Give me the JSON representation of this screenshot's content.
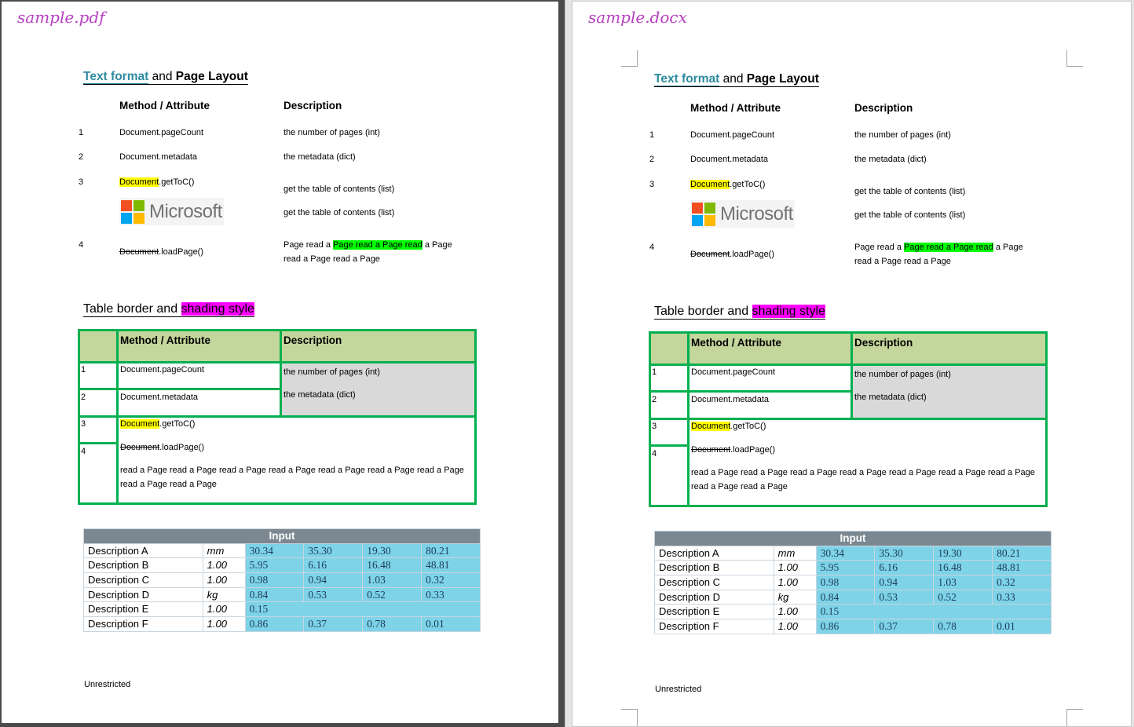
{
  "panels": [
    {
      "filename": "sample.pdf"
    },
    {
      "filename": "sample.docx"
    }
  ],
  "content": {
    "heading1": {
      "part1": "Text format",
      "part2": " and ",
      "part3": "Page Layout"
    },
    "table1": {
      "headers": [
        "Method / Attribute",
        "Description"
      ],
      "rows": [
        {
          "num": "1",
          "method": "Document.pageCount",
          "desc": "the number of pages (int)"
        },
        {
          "num": "2",
          "method": "Document.metadata",
          "desc": "the metadata (dict)"
        },
        {
          "num": "3",
          "method_hl": "Document",
          "method_rest": ".getToC()",
          "desc": "get the table of contents (list)",
          "desc2": "get the table of contents (list)"
        },
        {
          "num": "4",
          "method_strike": "Document",
          "method_rest": ".loadPage()",
          "desc_a": "Page read a ",
          "desc_hl": "Page read a Page read",
          "desc_b": " a Page",
          "desc_line2": "read a Page read a Page"
        }
      ],
      "logo_text": "Microsoft"
    },
    "heading2": {
      "part1": "Table border and ",
      "part2": "shading style"
    },
    "table2": {
      "headers": [
        "Method / Attribute",
        "Description"
      ],
      "nums": [
        "1",
        "2",
        "3",
        "4"
      ],
      "method1": "Document.pageCount",
      "method2": "Document.metadata",
      "desc1": "the number of pages (int)",
      "desc2": "the metadata (dict)",
      "method3_hl": "Document",
      "method3_rest": ".getToC()",
      "method4_strike": "Document",
      "method4_rest": ".loadPage()",
      "para_line1": "read a Page read a Page read a Page read a Page read a Page read a Page read a Page",
      "para_line2": "read a Page read a Page"
    },
    "table3": {
      "header": "Input",
      "rows": [
        {
          "label": "Description A",
          "unit": "mm",
          "values": [
            "30.34",
            "35.30",
            "19.30",
            "80.21"
          ]
        },
        {
          "label": "Description B",
          "unit": "1.00",
          "values": [
            "5.95",
            "6.16",
            "16.48",
            "48.81"
          ]
        },
        {
          "label": "Description C",
          "unit": "1.00",
          "values": [
            "0.98",
            "0.94",
            "1.03",
            "0.32"
          ]
        },
        {
          "label": "Description D",
          "unit": "kg",
          "values": [
            "0.84",
            "0.53",
            "0.52",
            "0.33"
          ]
        },
        {
          "label": "Description E",
          "unit": "1.00",
          "values": [
            "0.15"
          ]
        },
        {
          "label": "Description F",
          "unit": "1.00",
          "values": [
            "0.86",
            "0.37",
            "0.78",
            "0.01"
          ]
        }
      ]
    },
    "footer": "Unrestricted"
  },
  "colors": {
    "green_border": "#00b050",
    "header_green": "#c3d69b",
    "gray_shade": "#d9d9d9",
    "cyan": "#7ed3e7",
    "input_header": "#7b8892",
    "magenta": "#ff00ff",
    "yellow": "#ffff00",
    "lime": "#00ff00"
  }
}
